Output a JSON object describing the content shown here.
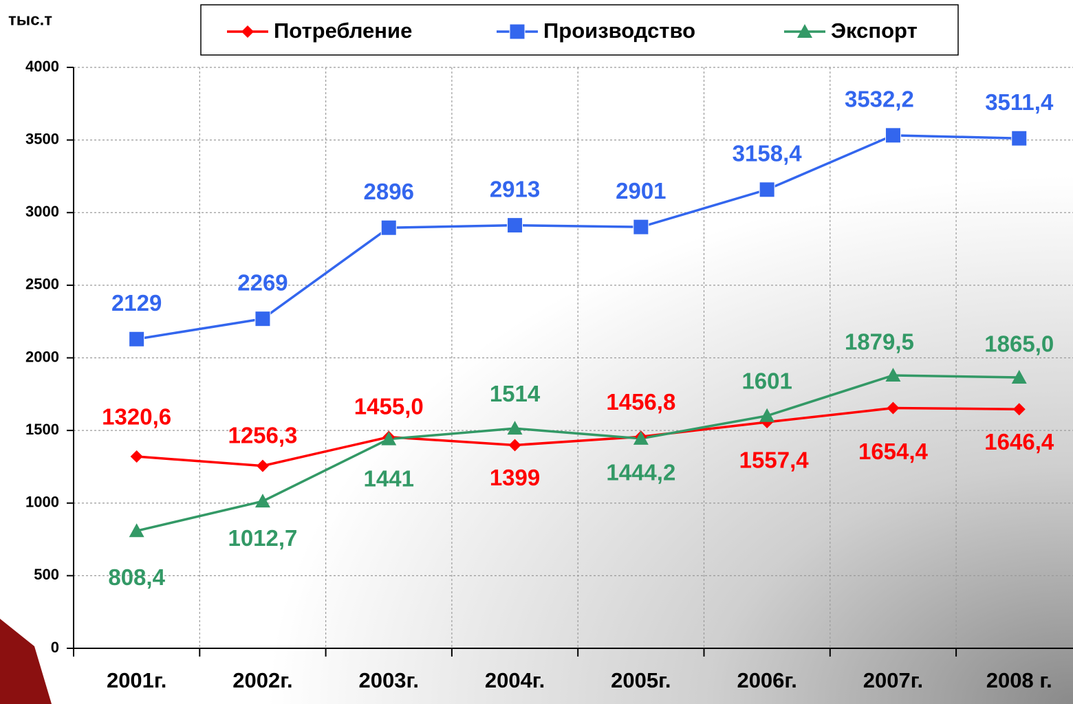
{
  "chart_data": {
    "type": "line",
    "y_axis_label": "тыс.т",
    "categories": [
      "2001г.",
      "2002г.",
      "2003г.",
      "2004г.",
      "2005г.",
      "2006г.",
      "2007г.",
      "2008 г."
    ],
    "series": [
      {
        "name": "Потребление",
        "color": "#ff0000",
        "marker": "diamond",
        "values": [
          1320.6,
          1256.3,
          1455.0,
          1399,
          1456.8,
          1557.4,
          1654.4,
          1646.4
        ],
        "value_labels": [
          "1320,6",
          "1256,3",
          "1455,0",
          "1399",
          "1456,8",
          "1557,4",
          "1654,4",
          "1646,4"
        ]
      },
      {
        "name": "Производство",
        "color": "#3366ee",
        "marker": "square",
        "values": [
          2129,
          2269,
          2896,
          2913,
          2901,
          3158.4,
          3532.2,
          3511.4
        ],
        "value_labels": [
          "2129",
          "2269",
          "2896",
          "2913",
          "2901",
          "3158,4",
          "3532,2",
          "3511,4"
        ]
      },
      {
        "name": "Экспорт",
        "color": "#339966",
        "marker": "triangle",
        "values": [
          808.4,
          1012.7,
          1441,
          1514,
          1444.2,
          1601,
          1879.5,
          1865.0
        ],
        "value_labels": [
          "808,4",
          "1012,7",
          "1441",
          "1514",
          "1444,2",
          "1601",
          "1879,5",
          "1865,0"
        ]
      }
    ],
    "ylim": [
      0,
      4000
    ],
    "yticks": [
      0,
      500,
      1000,
      1500,
      2000,
      2500,
      3000,
      3500,
      4000
    ],
    "grid": true,
    "legend": "top"
  }
}
